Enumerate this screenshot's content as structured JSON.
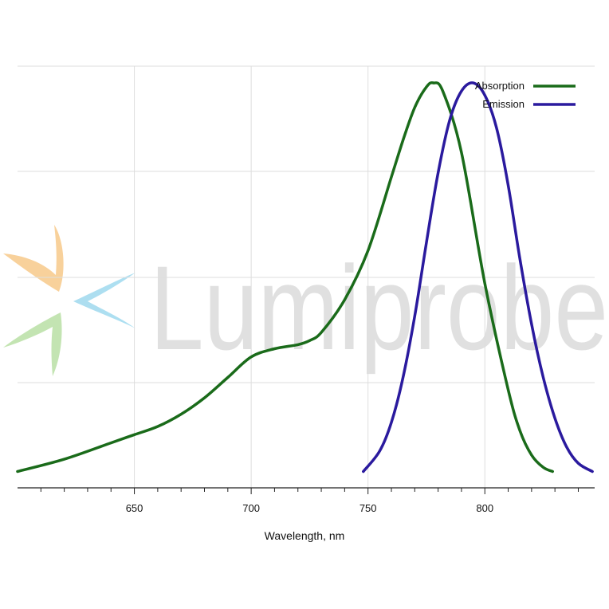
{
  "chart_data": {
    "type": "line",
    "xlabel": "Wavelength, nm",
    "ylabel": "",
    "xlim": [
      600,
      847
    ],
    "ylim": [
      0,
      1.0
    ],
    "xticks": [
      650,
      700,
      750,
      800
    ],
    "grid": true,
    "legend_position": "top-right",
    "series": [
      {
        "name": "Absorption",
        "color": "#1a6b1a",
        "x": [
          600,
          620,
          640,
          650,
          660,
          670,
          680,
          690,
          700,
          710,
          720,
          725,
          730,
          740,
          750,
          760,
          765,
          770,
          775,
          778,
          782,
          790,
          800,
          810,
          815,
          820,
          825,
          829
        ],
        "y": [
          0.04,
          0.07,
          0.11,
          0.13,
          0.15,
          0.18,
          0.22,
          0.27,
          0.32,
          0.34,
          0.35,
          0.36,
          0.38,
          0.46,
          0.58,
          0.76,
          0.85,
          0.93,
          0.98,
          0.99,
          0.97,
          0.82,
          0.5,
          0.24,
          0.14,
          0.08,
          0.05,
          0.04
        ]
      },
      {
        "name": "Emission",
        "color": "#2a1a9e",
        "x": [
          748,
          755,
          760,
          765,
          770,
          775,
          780,
          785,
          790,
          795,
          800,
          805,
          810,
          815,
          820,
          825,
          830,
          835,
          840,
          846
        ],
        "y": [
          0.04,
          0.09,
          0.16,
          0.27,
          0.42,
          0.6,
          0.77,
          0.9,
          0.97,
          0.99,
          0.96,
          0.88,
          0.74,
          0.56,
          0.4,
          0.27,
          0.17,
          0.1,
          0.06,
          0.04
        ]
      }
    ]
  },
  "watermark": {
    "text": "Lumiprobe",
    "logo_colors": [
      "#f7c98a",
      "#9fd9ee",
      "#b9e0a5"
    ]
  }
}
